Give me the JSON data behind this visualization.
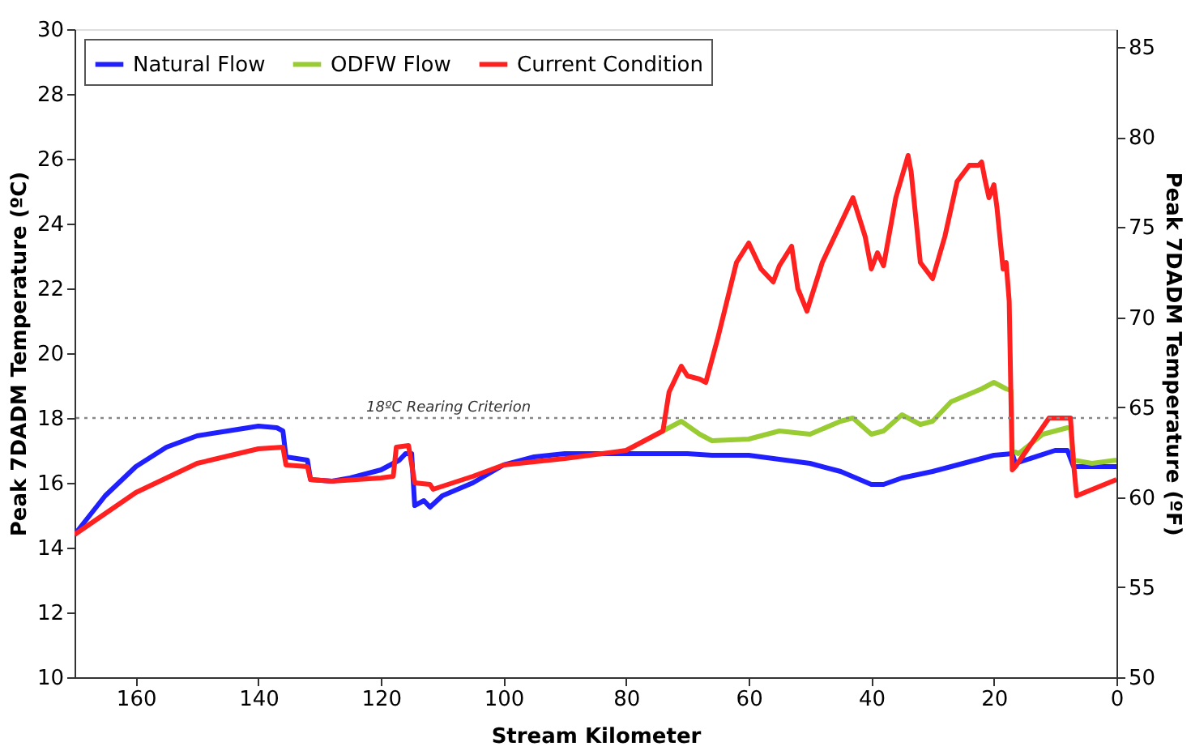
{
  "chart_data": {
    "type": "line",
    "xlabel": "Stream Kilometer",
    "ylabel": "Peak 7DADM Temperature (ºC)",
    "y2label": "Peak 7DADM Temperature (ºF)",
    "xlim": [
      170,
      0
    ],
    "xticks": [
      160,
      140,
      120,
      100,
      80,
      60,
      40,
      20,
      0
    ],
    "ylim": [
      10,
      30
    ],
    "yticks": [
      10,
      12,
      14,
      16,
      18,
      20,
      22,
      24,
      26,
      28,
      30
    ],
    "y2lim": [
      50,
      86
    ],
    "y2ticks": [
      50,
      55,
      60,
      65,
      70,
      75,
      80,
      85
    ],
    "legend": "top left",
    "grid": false,
    "marker": "none",
    "line_style": "solid",
    "ref_lines": [
      {
        "axis": "y",
        "value": 18,
        "label": "18ºC Rearing Criterion",
        "color": "#888888",
        "line_style": "dotted"
      }
    ],
    "series": [
      {
        "name": "Natural Flow",
        "color": "#2020ff",
        "x": [
          170,
          165,
          160,
          155,
          150,
          145,
          140,
          137,
          136,
          135.5,
          132,
          131.5,
          128,
          125,
          120,
          117,
          116,
          115,
          114.5,
          113,
          112,
          110,
          105,
          100,
          95,
          90,
          80,
          70,
          66,
          60,
          50,
          45,
          40,
          38,
          35,
          30,
          25,
          20,
          17,
          16.5,
          10,
          8,
          7,
          0
        ],
        "values": [
          14.4,
          15.6,
          16.5,
          17.1,
          17.45,
          17.6,
          17.75,
          17.7,
          17.6,
          16.8,
          16.7,
          16.1,
          16.05,
          16.15,
          16.4,
          16.7,
          16.9,
          16.9,
          15.3,
          15.45,
          15.25,
          15.6,
          16.0,
          16.55,
          16.8,
          16.9,
          16.9,
          16.9,
          16.85,
          16.85,
          16.6,
          16.35,
          15.95,
          15.95,
          16.15,
          16.35,
          16.6,
          16.85,
          16.9,
          16.6,
          17.0,
          17.0,
          16.5,
          16.5
        ]
      },
      {
        "name": "ODFW Flow",
        "color": "#99cc33",
        "x": [
          74,
          73,
          71,
          68,
          66,
          60,
          55,
          50,
          45,
          43,
          40,
          38,
          35,
          32,
          30,
          27,
          22,
          20,
          18,
          17.2,
          17,
          16,
          12,
          8,
          7.5,
          7,
          4,
          0
        ],
        "values": [
          17.6,
          17.7,
          17.9,
          17.5,
          17.3,
          17.35,
          17.6,
          17.5,
          17.9,
          18.0,
          17.5,
          17.6,
          18.1,
          17.8,
          17.9,
          18.5,
          18.9,
          19.1,
          18.9,
          18.85,
          17.0,
          16.9,
          17.5,
          17.7,
          17.7,
          16.7,
          16.6,
          16.7
        ]
      },
      {
        "name": "Current Condition",
        "color": "#ff2020",
        "x": [
          170,
          160,
          150,
          140,
          136,
          135.5,
          132,
          131.5,
          128,
          120,
          118,
          117.5,
          115.5,
          114.5,
          112,
          111.5,
          105,
          100,
          90,
          80,
          74,
          73,
          72,
          71,
          70,
          68,
          67,
          65,
          62,
          60,
          58,
          56,
          55,
          53,
          52,
          50.5,
          48,
          45,
          43,
          41,
          40,
          39,
          38,
          36,
          34,
          33.5,
          32,
          30,
          28,
          26,
          24,
          22.5,
          22,
          21.5,
          20.8,
          20,
          19.5,
          18.5,
          18,
          17.5,
          17,
          16.5,
          11,
          7.5,
          7,
          6.5,
          0
        ],
        "values": [
          14.4,
          15.7,
          16.6,
          17.05,
          17.1,
          16.55,
          16.5,
          16.1,
          16.05,
          16.15,
          16.2,
          17.1,
          17.15,
          16.0,
          15.95,
          15.8,
          16.2,
          16.55,
          16.75,
          17.0,
          17.6,
          18.8,
          19.2,
          19.6,
          19.3,
          19.2,
          19.1,
          20.5,
          22.8,
          23.4,
          22.6,
          22.2,
          22.7,
          23.3,
          22.0,
          21.3,
          22.8,
          24.0,
          24.8,
          23.6,
          22.6,
          23.1,
          22.7,
          24.8,
          26.1,
          25.6,
          22.8,
          22.3,
          23.6,
          25.3,
          25.8,
          25.8,
          25.9,
          25.4,
          24.8,
          25.2,
          24.5,
          22.6,
          22.8,
          21.6,
          16.4,
          16.5,
          18.0,
          18.0,
          16.6,
          15.6,
          16.1
        ]
      }
    ]
  }
}
